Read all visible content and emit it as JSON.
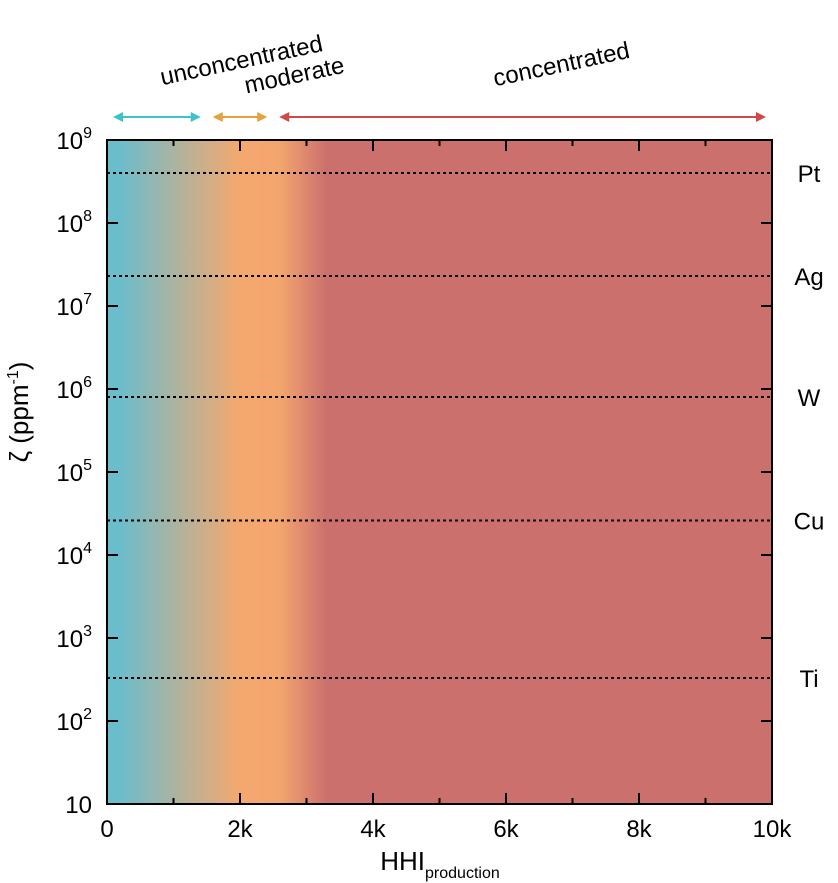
{
  "chart_data": {
    "type": "area",
    "title": "",
    "xlabel": "HHI",
    "xlabel_subscript": "production",
    "ylabel": "ζ (ppm",
    "ylabel_sup": "-1",
    "ylabel_close": ")",
    "xlim": [
      0,
      10000
    ],
    "ylim": [
      10,
      1000000000
    ],
    "yscale": "log",
    "grid": false,
    "x_ticks": [
      {
        "value": 0,
        "label": "0"
      },
      {
        "value": 2000,
        "label": "2k"
      },
      {
        "value": 4000,
        "label": "4k"
      },
      {
        "value": 6000,
        "label": "6k"
      },
      {
        "value": 8000,
        "label": "8k"
      },
      {
        "value": 10000,
        "label": "10k"
      }
    ],
    "y_ticks": [
      {
        "value": 10,
        "base": "10",
        "exp": ""
      },
      {
        "value": 100,
        "base": "10",
        "exp": "2"
      },
      {
        "value": 1000,
        "base": "10",
        "exp": "3"
      },
      {
        "value": 10000,
        "base": "10",
        "exp": "4"
      },
      {
        "value": 100000,
        "base": "10",
        "exp": "5"
      },
      {
        "value": 1000000,
        "base": "10",
        "exp": "6"
      },
      {
        "value": 10000000,
        "base": "10",
        "exp": "7"
      },
      {
        "value": 100000000,
        "base": "10",
        "exp": "8"
      },
      {
        "value": 1000000000,
        "base": "10",
        "exp": "9"
      }
    ],
    "regions": [
      {
        "label": "unconcentrated",
        "x_range": [
          0,
          1500
        ],
        "color": "#6cbdcc",
        "arrow_color": "#3cc4c8"
      },
      {
        "label": "moderate",
        "x_range": [
          1500,
          2500
        ],
        "color": "#f5a86e",
        "arrow_color": "#e8a03c"
      },
      {
        "label": "concentrated",
        "x_range": [
          2500,
          10000
        ],
        "color": "#cc706e",
        "arrow_color": "#d04848"
      }
    ],
    "reference_lines": [
      {
        "label": "Pt",
        "y": 400000000
      },
      {
        "label": "Ag",
        "y": 23000000
      },
      {
        "label": "W",
        "y": 800000
      },
      {
        "label": "Cu",
        "y": 26000
      },
      {
        "label": "Ti",
        "y": 330
      }
    ]
  }
}
